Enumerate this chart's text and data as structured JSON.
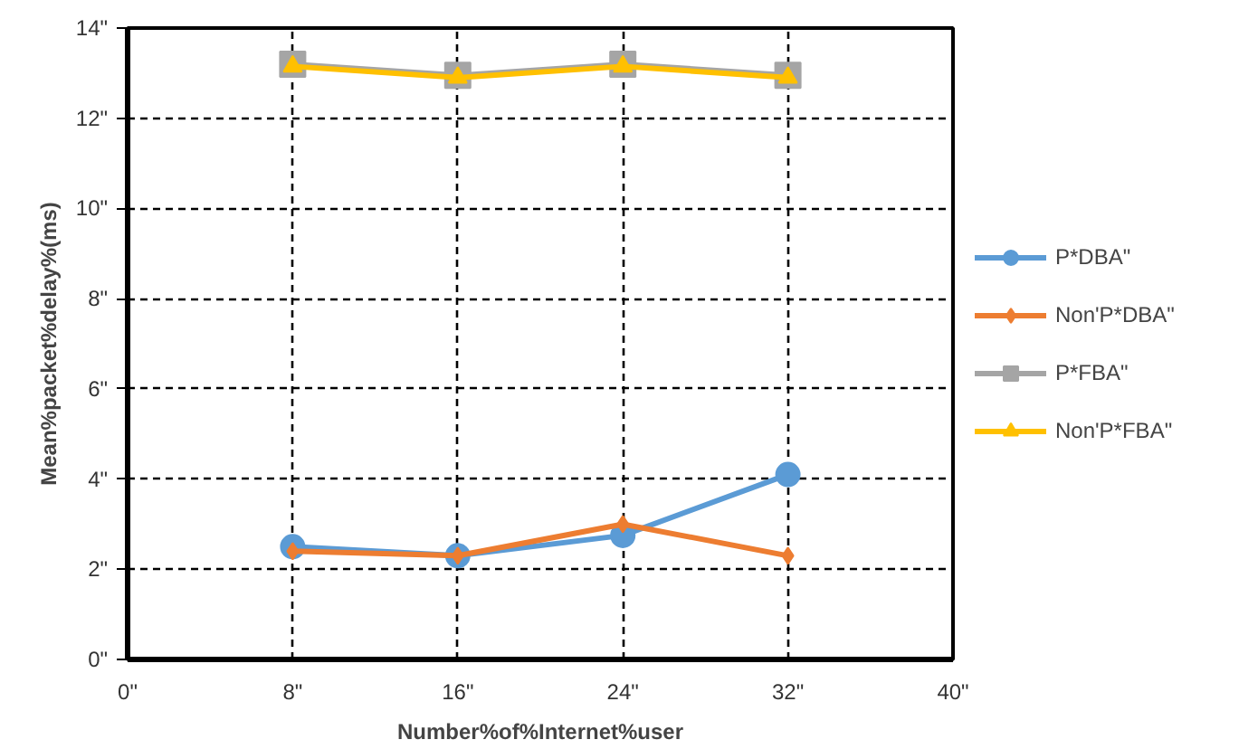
{
  "chart_data": {
    "type": "line",
    "xlabel": "Number%of%Internet%user",
    "ylabel": "Mean%packet%delay%(ms)",
    "x": [
      8,
      16,
      24,
      32
    ],
    "series": [
      {
        "name": "P*DBA\"",
        "color": "#5b9bd5",
        "marker": "circle",
        "values": [
          2.5,
          2.3,
          2.75,
          4.1
        ]
      },
      {
        "name": "Non'P*DBA\"",
        "color": "#ed7d31",
        "marker": "diamond",
        "values": [
          2.4,
          2.3,
          3.0,
          2.3
        ]
      },
      {
        "name": "P*FBA\"",
        "color": "#a5a5a5",
        "marker": "square",
        "values": [
          13.2,
          12.95,
          13.2,
          12.95
        ]
      },
      {
        "name": "Non'P*FBA\"",
        "color": "#ffc000",
        "marker": "triangle",
        "values": [
          13.15,
          12.9,
          13.15,
          12.9
        ]
      }
    ],
    "xlim": [
      0,
      40
    ],
    "ylim": [
      0,
      14
    ],
    "xticks": [
      {
        "value": 0,
        "label": "0\""
      },
      {
        "value": 8,
        "label": "8\""
      },
      {
        "value": 16,
        "label": "16\""
      },
      {
        "value": 24,
        "label": "24\""
      },
      {
        "value": 32,
        "label": "32\""
      },
      {
        "value": 40,
        "label": "40\""
      }
    ],
    "yticks": [
      {
        "value": 0,
        "label": "0\""
      },
      {
        "value": 2,
        "label": "2\""
      },
      {
        "value": 4,
        "label": "4\""
      },
      {
        "value": 6,
        "label": "6\""
      },
      {
        "value": 8,
        "label": "8\""
      },
      {
        "value": 10,
        "label": "10\""
      },
      {
        "value": 12,
        "label": "12\""
      },
      {
        "value": 14,
        "label": "14\""
      }
    ],
    "grid": true,
    "legend": "right",
    "line_style": "solid"
  }
}
